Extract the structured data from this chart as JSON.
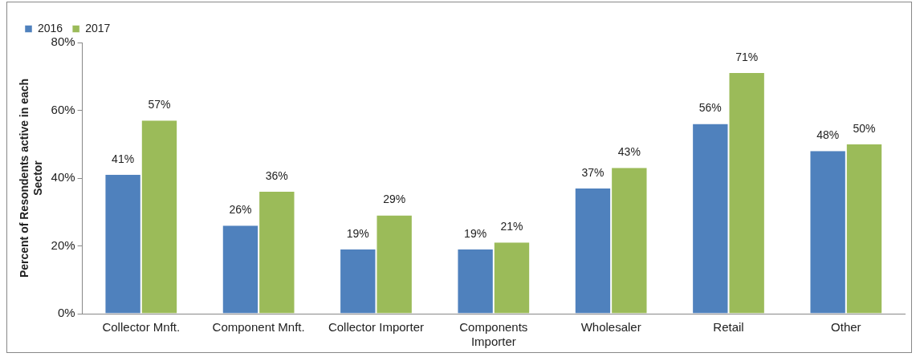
{
  "chart_data": {
    "type": "bar",
    "ylabel": "Percent of Resondents active in each Sector",
    "categories": [
      "Collector Mnft.",
      "Component Mnft.",
      "Collector Importer",
      "Components Importer",
      "Wholesaler",
      "Retail",
      "Other"
    ],
    "series": [
      {
        "name": "2016",
        "color": "#4f81bd",
        "values": [
          41,
          26,
          19,
          19,
          37,
          56,
          48
        ],
        "value_labels": [
          "41%",
          "26%",
          "19%",
          "19%",
          "37%",
          "56%",
          "48%"
        ]
      },
      {
        "name": "2017",
        "color": "#9bbb59",
        "values": [
          57,
          36,
          29,
          21,
          43,
          71,
          50
        ],
        "value_labels": [
          "57%",
          "36%",
          "29%",
          "21%",
          "43%",
          "71%",
          "50%"
        ]
      }
    ],
    "ylim": [
      0,
      80
    ],
    "yticks": [
      {
        "value": 0,
        "label": "0%"
      },
      {
        "value": 20,
        "label": "20%"
      },
      {
        "value": 40,
        "label": "40%"
      },
      {
        "value": 60,
        "label": "60%"
      },
      {
        "value": 80,
        "label": "80%"
      }
    ],
    "grid": false,
    "legend": "top left"
  }
}
